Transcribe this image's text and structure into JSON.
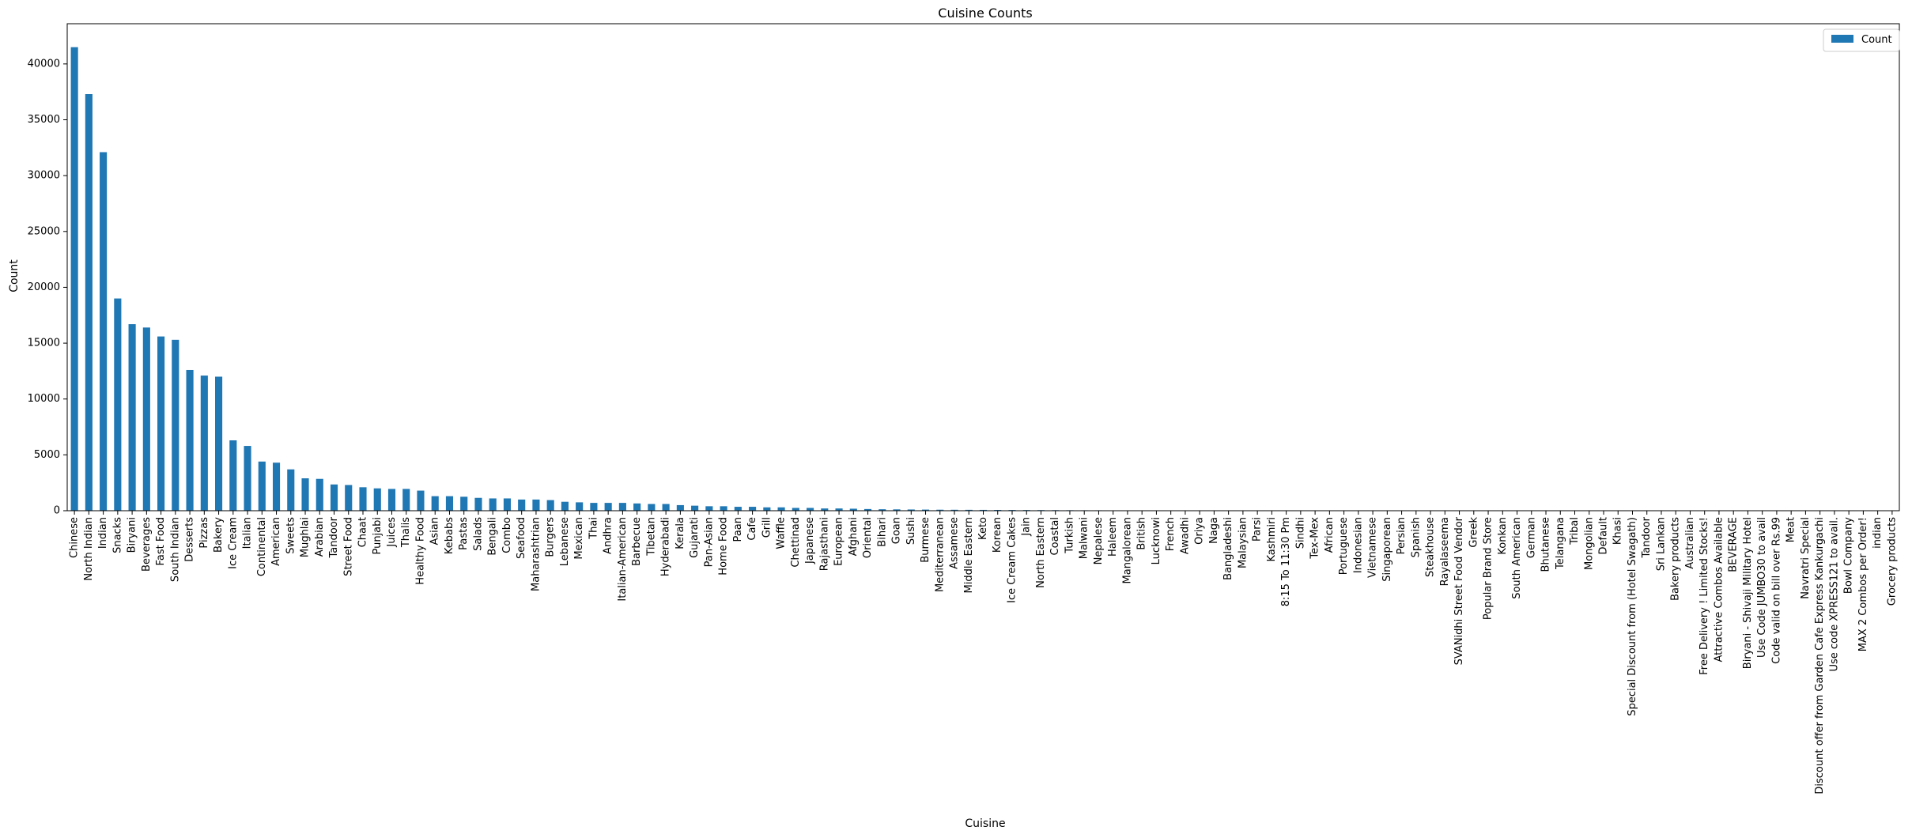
{
  "chart_data": {
    "type": "bar",
    "title": "Cuisine Counts",
    "xlabel": "Cuisine",
    "ylabel": "Count",
    "ylim": [
      0,
      43600
    ],
    "yticks": [
      0,
      5000,
      10000,
      15000,
      20000,
      25000,
      30000,
      35000,
      40000
    ],
    "grid": false,
    "legend_position": "top-right",
    "bar_color": "#1f77b4",
    "series": [
      {
        "name": "Count"
      }
    ],
    "categories": [
      "Chinese",
      "North Indian",
      "Indian",
      "Snacks",
      "Biryani",
      "Beverages",
      "Fast Food",
      "South Indian",
      "Desserts",
      "Pizzas",
      "Bakery",
      "Ice Cream",
      "Italian",
      "Continental",
      "American",
      "Sweets",
      "Mughlai",
      "Arabian",
      "Tandoor",
      "Street Food",
      "Chaat",
      "Punjabi",
      "Juices",
      "Thalis",
      "Healthy Food",
      "Asian",
      "Kebabs",
      "Pastas",
      "Salads",
      "Bengali",
      "Combo",
      "Seafood",
      "Maharashtrian",
      "Burgers",
      "Lebanese",
      "Mexican",
      "Thai",
      "Andhra",
      "Italian-American",
      "Barbecue",
      "Tibetan",
      "Hyderabadi",
      "Kerala",
      "Gujarati",
      "Pan-Asian",
      "Home Food",
      "Paan",
      "Cafe",
      "Grill",
      "Waffle",
      "Chettinad",
      "Japanese",
      "Rajasthani",
      "European",
      "Afghani",
      "Oriental",
      "Bihari",
      "Goan",
      "Sushi",
      "Burmese",
      "Mediterranean",
      "Assamese",
      "Middle Eastern",
      "Keto",
      "Korean",
      "Ice Cream Cakes",
      "Jain",
      "North Eastern",
      "Coastal",
      "Turkish",
      "Malwani",
      "Nepalese",
      "Haleem",
      "Mangalorean",
      "British",
      "Lucknowi",
      "French",
      "Awadhi",
      "Oriya",
      "Naga",
      "Bangladeshi",
      "Malaysian",
      "Parsi",
      "Kashmiri",
      "8:15 To 11:30 Pm",
      "Sindhi",
      "Tex-Mex",
      "African",
      "Portuguese",
      "Indonesian",
      "Vietnamese",
      "Singaporean",
      "Persian",
      "Spanish",
      "Steakhouse",
      "Rayalaseema",
      "SVANidhi Street Food Vendor",
      "Greek",
      "Popular Brand Store",
      "Konkan",
      "South American",
      "German",
      "Bhutanese",
      "Telangana",
      "Tribal",
      "Mongolian",
      "Default",
      "Khasi",
      "Special Discount from (Hotel Swagath)",
      "Tandoor",
      "Sri Lankan",
      "Bakery products",
      "Australian",
      "Free Delivery ! Limited Stocks!",
      "Attractive Combos Available",
      "BEVERAGE",
      "Biryani - Shivaji Military Hotel",
      "Use Code JUMBO30 to avail",
      "Code valid on bill over Rs.99",
      "Meat",
      "Navratri Special",
      "Discount offer from Garden Cafe Express Kankurgachi",
      "Use code XPRESS121 to avail.",
      "Bowl Company",
      "MAX 2 Combos per Order!",
      "indian",
      "Grocery products"
    ],
    "values": [
      41500,
      37300,
      32100,
      19000,
      16700,
      16400,
      15600,
      15300,
      12600,
      12100,
      12000,
      6300,
      5800,
      4400,
      4300,
      3700,
      2900,
      2850,
      2350,
      2300,
      2100,
      2000,
      1950,
      1950,
      1800,
      1300,
      1300,
      1250,
      1150,
      1100,
      1100,
      1000,
      1000,
      950,
      800,
      750,
      700,
      700,
      700,
      650,
      600,
      600,
      500,
      450,
      400,
      400,
      350,
      350,
      300,
      300,
      250,
      250,
      200,
      200,
      180,
      150,
      130,
      120,
      110,
      100,
      90,
      85,
      80,
      75,
      70,
      65,
      60,
      55,
      50,
      45,
      40,
      38,
      35,
      32,
      30,
      28,
      26,
      24,
      22,
      20,
      18,
      16,
      15,
      14,
      13,
      12,
      11,
      10,
      9,
      9,
      8,
      8,
      7,
      7,
      6,
      6,
      5,
      5,
      5,
      4,
      4,
      4,
      3,
      3,
      3,
      3,
      2,
      2,
      2,
      2,
      2,
      2,
      2,
      1,
      1,
      1,
      1,
      1,
      1,
      1,
      1,
      1,
      1,
      1,
      1,
      1,
      1
    ]
  }
}
